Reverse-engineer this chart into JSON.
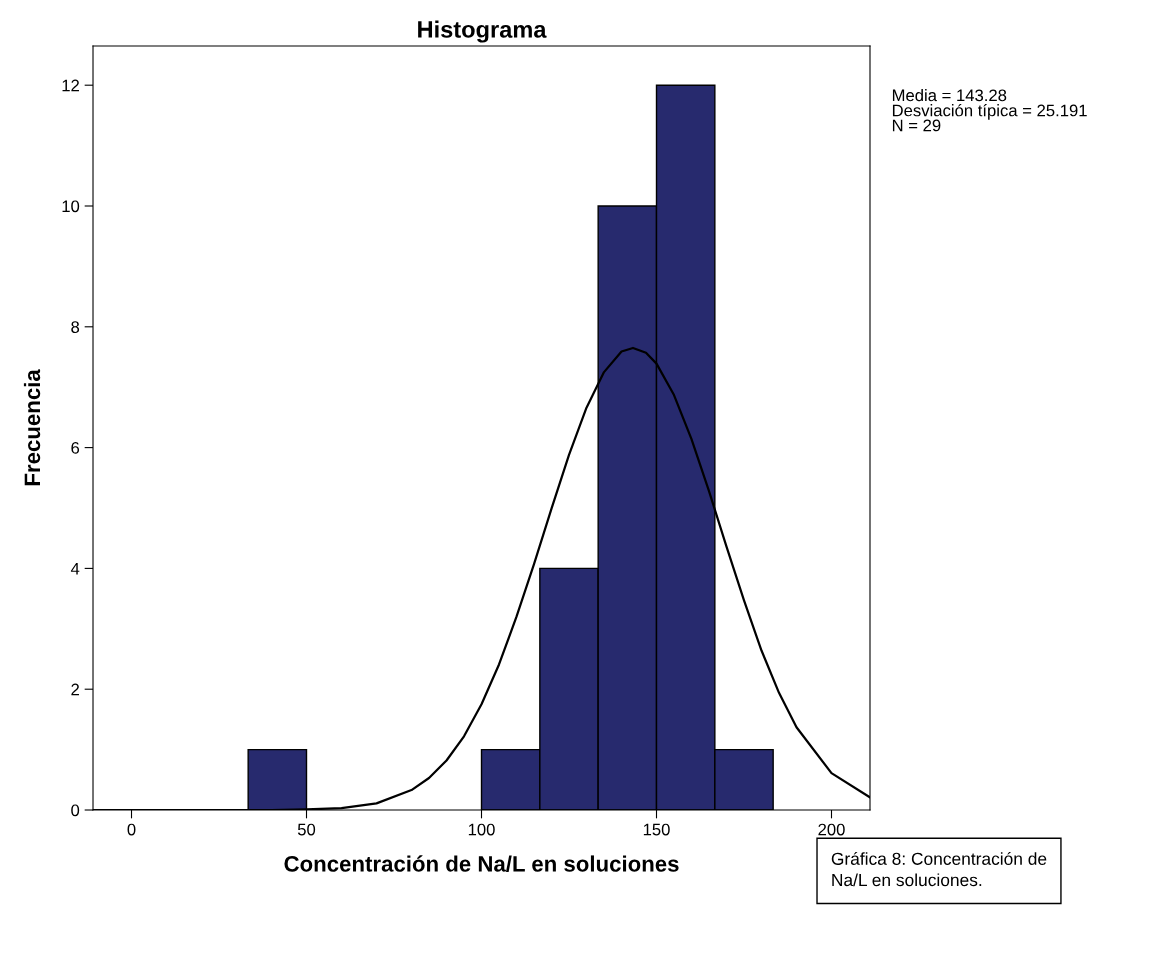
{
  "chart_data": {
    "type": "histogram",
    "title": "Histograma",
    "xlabel": "Concentración de Na/L en soluciones",
    "ylabel": "Frecuencia",
    "bins": [
      33.33,
      50,
      66.67,
      83.33,
      100,
      116.67,
      133.33,
      150,
      166.67,
      183.33
    ],
    "values": [
      1,
      0,
      0,
      0,
      1,
      4,
      10,
      12,
      1
    ],
    "color": "#272a6e",
    "series": [
      {
        "type": "line",
        "color": "#000000",
        "x": [
          -11,
          40,
          50,
          60,
          70,
          80,
          85,
          90,
          95,
          100,
          105,
          110,
          115,
          120,
          125,
          130,
          135,
          140,
          143.28,
          147,
          150,
          155,
          160,
          165,
          170,
          175,
          180,
          185,
          190,
          200,
          211
        ],
        "values": [
          0,
          0,
          0.01,
          0.03,
          0.11,
          0.33,
          0.53,
          0.82,
          1.22,
          1.75,
          2.41,
          3.2,
          4.07,
          4.99,
          5.88,
          6.66,
          7.25,
          7.59,
          7.65,
          7.57,
          7.39,
          6.87,
          6.14,
          5.28,
          4.36,
          3.47,
          2.64,
          1.94,
          1.37,
          0.61,
          0.21
        ]
      }
    ],
    "xlim": [
      -11,
      211
    ],
    "xticks": [
      0,
      50,
      100,
      150,
      200
    ],
    "ylim": [
      0,
      12.65
    ],
    "yticks": [
      0,
      2,
      4,
      6,
      8,
      10,
      12
    ],
    "annotations": [
      "Media = 143.28\nDesviación típica = 25.191\nN = 29",
      "Gráfica 8: Concentración de\nNa/L en soluciones."
    ]
  }
}
